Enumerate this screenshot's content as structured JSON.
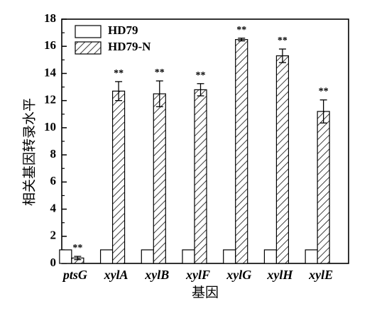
{
  "chart_data": {
    "type": "bar",
    "xlabel": "基因",
    "ylabel": "相关基因转录水平",
    "ylim": [
      0,
      18
    ],
    "yticks": [
      "0",
      "2",
      "4",
      "6",
      "8",
      "10",
      "12",
      "14",
      "16",
      "18"
    ],
    "categories": [
      "ptsG",
      "xylA",
      "xylB",
      "xylF",
      "xylG",
      "xylH",
      "xylE"
    ],
    "series": [
      {
        "name": "HD79",
        "values": [
          1,
          1,
          1,
          1,
          1,
          1,
          1
        ],
        "errors": [
          0,
          0,
          0,
          0,
          0,
          0,
          0
        ],
        "fill": "#ffffff"
      },
      {
        "name": "HD79-N",
        "values": [
          0.4,
          12.7,
          12.5,
          12.8,
          16.5,
          15.3,
          11.2
        ],
        "errors": [
          0.12,
          0.7,
          0.95,
          0.45,
          0.1,
          0.5,
          0.85
        ],
        "fill": "hatch"
      }
    ],
    "significance": [
      "**",
      "**",
      "**",
      "**",
      "**",
      "**",
      "**"
    ],
    "legend_position": "top-left",
    "grid": false
  }
}
